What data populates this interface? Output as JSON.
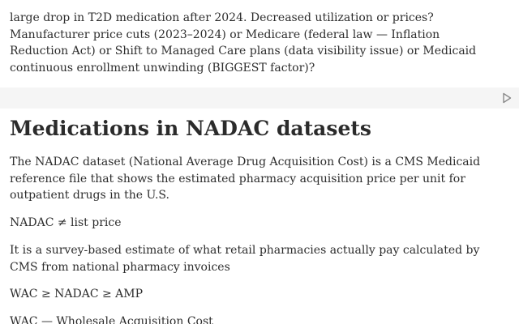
{
  "cell_top": {
    "lines": [
      "large drop in T2D medication after 2024. Decreased utilization or prices?",
      "Manufacturer price cuts (2023–2024) or Medicare (federal law — Inflation",
      "Reduction Act) or Shift to Managed Care plans (data visibility issue) or Medicaid",
      "continuous enrollment unwinding (BIGGEST factor)?"
    ]
  },
  "code_cell": {
    "run_icon": "play-outline-icon"
  },
  "markdown": {
    "heading": "Medications in NADAC datasets",
    "intro_lines": [
      "The NADAC dataset (National Average Drug Acquisition Cost) is a CMS Medicaid",
      "reference file that shows the estimated pharmacy acquisition price per unit for",
      "outpatient drugs in the U.S."
    ],
    "not_equal": "NADAC ≠ list price",
    "survey_lines": [
      "It is a survey-based estimate of what retail pharmacies actually pay calculated by",
      "CMS from national pharmacy invoices"
    ],
    "inequality": "WAC ≥ NADAC ≥ AMP",
    "wac_def": "WAC — Wholesale Acquisition Cost"
  }
}
